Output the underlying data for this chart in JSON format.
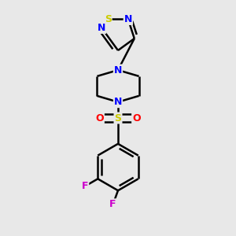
{
  "bg_color": "#e8e8e8",
  "bond_color": "#000000",
  "bond_width": 1.8,
  "atom_colors": {
    "S_thiadiazole": "#cccc00",
    "N_blue": "#0000ff",
    "S_sulfonyl": "#cccc00",
    "O_red": "#ff0000",
    "F_magenta": "#cc00cc",
    "C_black": "#000000"
  },
  "font_size_atoms": 9,
  "fig_width": 3.0,
  "fig_height": 3.0,
  "dpi": 100,
  "xlim": [
    0.2,
    0.8
  ],
  "ylim": [
    0.02,
    0.98
  ]
}
